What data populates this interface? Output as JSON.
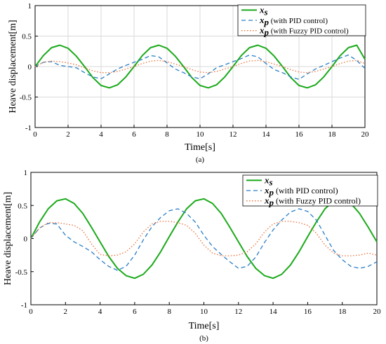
{
  "chart_data": [
    {
      "id": "a",
      "type": "line",
      "caption": "(a)",
      "xlabel": "Time[s]",
      "ylabel": "Heave displacement[m]",
      "xlim": [
        0,
        20
      ],
      "ylim": [
        -1,
        1
      ],
      "xticks": [
        0,
        2,
        4,
        6,
        8,
        10,
        12,
        14,
        16,
        18,
        20
      ],
      "yticks": [
        -1,
        -0.5,
        0,
        0.5,
        1
      ],
      "grid": true,
      "legend_position": "top-right",
      "series": [
        {
          "name": "x_s",
          "legend_label": "",
          "color": "#1aaa1a",
          "style": "solid",
          "x": [
            0,
            0.5,
            1,
            1.5,
            2,
            2.5,
            3,
            3.5,
            4,
            4.5,
            5,
            5.5,
            6,
            6.5,
            7,
            7.5,
            8,
            8.5,
            9,
            9.5,
            10,
            10.5,
            11,
            11.5,
            12,
            12.5,
            13,
            13.5,
            14,
            14.5,
            15,
            15.5,
            16,
            16.5,
            17,
            17.5,
            18,
            18.5,
            19,
            19.5,
            20
          ],
          "y": [
            0,
            0.18,
            0.31,
            0.35,
            0.3,
            0.17,
            0,
            -0.18,
            -0.31,
            -0.35,
            -0.3,
            -0.17,
            0,
            0.18,
            0.31,
            0.35,
            0.3,
            0.17,
            0,
            -0.18,
            -0.31,
            -0.35,
            -0.3,
            -0.17,
            0,
            0.18,
            0.31,
            0.35,
            0.3,
            0.17,
            0,
            -0.18,
            -0.31,
            -0.35,
            -0.3,
            -0.17,
            0,
            0.18,
            0.31,
            0.35,
            0.12
          ]
        },
        {
          "name": "x_p",
          "legend_label": "(with PID control)",
          "color": "#2a7fc8",
          "style": "dashed",
          "x": [
            0,
            0.5,
            1,
            1.5,
            2,
            2.5,
            3,
            3.5,
            4,
            4.5,
            5,
            5.5,
            6,
            6.5,
            7,
            7.5,
            8,
            8.5,
            9,
            9.5,
            10,
            10.5,
            11,
            11.5,
            12,
            12.5,
            13,
            13.5,
            14,
            14.5,
            15,
            15.5,
            16,
            16.5,
            17,
            17.5,
            18,
            18.5,
            19,
            19.5,
            20
          ],
          "y": [
            0,
            0.07,
            0.08,
            0.02,
            0,
            -0.02,
            -0.1,
            -0.17,
            -0.2,
            -0.12,
            -0.04,
            0.02,
            0.07,
            0.12,
            0.18,
            0.16,
            0.06,
            -0.04,
            -0.1,
            -0.17,
            -0.2,
            -0.12,
            -0.02,
            0.03,
            0.08,
            0.13,
            0.19,
            0.16,
            0.05,
            -0.05,
            -0.1,
            -0.17,
            -0.21,
            -0.12,
            -0.04,
            0.02,
            0.08,
            0.14,
            0.19,
            0.1,
            -0.03
          ]
        },
        {
          "name": "x_p",
          "legend_label": "(with Fuzzy PID control)",
          "color": "#e8733a",
          "style": "dotted",
          "x": [
            0,
            0.5,
            1,
            1.5,
            2,
            2.5,
            3,
            3.5,
            4,
            4.5,
            5,
            5.5,
            6,
            6.5,
            7,
            7.5,
            8,
            8.5,
            9,
            9.5,
            10,
            10.5,
            11,
            11.5,
            12,
            12.5,
            13,
            13.5,
            14,
            14.5,
            15,
            15.5,
            16,
            16.5,
            17,
            17.5,
            18,
            18.5,
            19,
            19.5,
            20
          ],
          "y": [
            0,
            0.07,
            0.09,
            0.08,
            0.06,
            0.03,
            -0.02,
            -0.07,
            -0.1,
            -0.1,
            -0.08,
            -0.04,
            0,
            0.05,
            0.09,
            0.1,
            0.08,
            0.04,
            0,
            -0.05,
            -0.09,
            -0.1,
            -0.08,
            -0.04,
            0,
            0.05,
            0.09,
            0.1,
            0.08,
            0.04,
            0,
            -0.05,
            -0.09,
            -0.1,
            -0.08,
            -0.04,
            0,
            0.05,
            0.09,
            0.1,
            0.05
          ]
        }
      ]
    },
    {
      "id": "b",
      "type": "line",
      "caption": "(b)",
      "xlabel": "Time[s]",
      "ylabel": "Heave displacement[m]",
      "xlim": [
        0,
        20
      ],
      "ylim": [
        -1,
        1
      ],
      "xticks": [
        0,
        2,
        4,
        6,
        8,
        10,
        12,
        14,
        16,
        18,
        20
      ],
      "yticks": [
        -1,
        -0.5,
        0,
        0.5,
        1
      ],
      "grid": false,
      "legend_position": "top-right",
      "series": [
        {
          "name": "x_s",
          "legend_label": "",
          "color": "#1aaa1a",
          "style": "solid",
          "x": [
            0,
            0.5,
            1,
            1.5,
            2,
            2.5,
            3,
            3.5,
            4,
            4.5,
            5,
            5.5,
            6,
            6.5,
            7,
            7.5,
            8,
            8.5,
            9,
            9.5,
            10,
            10.5,
            11,
            11.5,
            12,
            12.5,
            13,
            13.5,
            14,
            14.5,
            15,
            15.5,
            16,
            16.5,
            17,
            17.5,
            18,
            18.5,
            19,
            19.5,
            20
          ],
          "y": [
            0,
            0.25,
            0.45,
            0.57,
            0.6,
            0.53,
            0.38,
            0.17,
            -0.05,
            -0.27,
            -0.45,
            -0.56,
            -0.6,
            -0.54,
            -0.4,
            -0.2,
            0.03,
            0.25,
            0.45,
            0.57,
            0.6,
            0.53,
            0.38,
            0.17,
            -0.05,
            -0.27,
            -0.45,
            -0.56,
            -0.6,
            -0.54,
            -0.4,
            -0.2,
            0.03,
            0.25,
            0.45,
            0.57,
            0.6,
            0.53,
            0.38,
            0.17,
            -0.05
          ]
        },
        {
          "name": "x_p",
          "legend_label": "(with PID control)",
          "color": "#2a7fc8",
          "style": "dashed",
          "x": [
            0,
            0.5,
            1,
            1.5,
            2,
            2.5,
            3,
            3.5,
            4,
            4.5,
            5,
            5.5,
            6,
            6.5,
            7,
            7.5,
            8,
            8.5,
            9,
            9.5,
            10,
            10.5,
            11,
            11.5,
            12,
            12.5,
            13,
            13.5,
            14,
            14.5,
            15,
            15.5,
            16,
            16.5,
            17,
            17.5,
            18,
            18.5,
            19,
            19.5,
            20
          ],
          "y": [
            0,
            0.16,
            0.23,
            0.22,
            0.05,
            -0.05,
            -0.12,
            -0.2,
            -0.32,
            -0.42,
            -0.48,
            -0.42,
            -0.25,
            -0.02,
            0.18,
            0.32,
            0.42,
            0.45,
            0.38,
            0.25,
            0.05,
            -0.12,
            -0.24,
            -0.35,
            -0.45,
            -0.42,
            -0.28,
            -0.06,
            0.13,
            0.28,
            0.4,
            0.45,
            0.41,
            0.28,
            0.05,
            -0.18,
            -0.32,
            -0.42,
            -0.45,
            -0.42,
            -0.35
          ]
        },
        {
          "name": "x_p",
          "legend_label": "(with Fuzzy PID control)",
          "color": "#e8733a",
          "style": "dotted",
          "x": [
            0,
            0.5,
            1,
            1.5,
            2,
            2.5,
            3,
            3.5,
            4,
            4.5,
            5,
            5.5,
            6,
            6.5,
            7,
            7.5,
            8,
            8.5,
            9,
            9.5,
            10,
            10.5,
            11,
            11.5,
            12,
            12.5,
            13,
            13.5,
            14,
            14.5,
            15,
            15.5,
            16,
            16.5,
            17,
            17.5,
            18,
            18.5,
            19,
            19.5,
            20
          ],
          "y": [
            0,
            0.16,
            0.24,
            0.24,
            0.22,
            0.2,
            0.12,
            -0.08,
            -0.24,
            -0.26,
            -0.25,
            -0.2,
            -0.08,
            0.1,
            0.22,
            0.26,
            0.26,
            0.24,
            0.2,
            0.08,
            -0.1,
            -0.22,
            -0.26,
            -0.26,
            -0.25,
            -0.2,
            -0.08,
            0.1,
            0.22,
            0.26,
            0.26,
            0.24,
            0.2,
            0.08,
            -0.1,
            -0.22,
            -0.26,
            -0.26,
            -0.25,
            -0.22,
            -0.25
          ]
        }
      ]
    }
  ]
}
